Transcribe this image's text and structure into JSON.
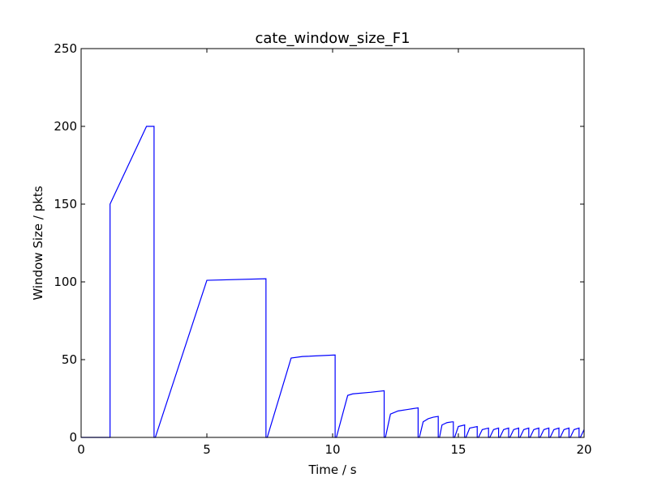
{
  "chart_data": {
    "type": "line",
    "title": "cate_window_size_F1",
    "xlabel": "Time / s",
    "ylabel": "Window Size / pkts",
    "xlim": [
      0,
      20
    ],
    "ylim": [
      0,
      250
    ],
    "x_ticks": [
      0,
      5,
      10,
      15,
      20
    ],
    "y_ticks": [
      0,
      50,
      100,
      150,
      200,
      250
    ],
    "grid": false,
    "legend": "none",
    "series": [
      {
        "color": "#0000ff",
        "x": [
          0,
          1.15,
          1.15,
          2.6,
          2.9,
          2.9,
          2.95,
          5.0,
          7.35,
          7.35,
          7.4,
          8.35,
          8.8,
          10.1,
          10.1,
          10.15,
          10.6,
          10.8,
          11.5,
          12.05,
          12.05,
          12.1,
          12.3,
          12.6,
          13.0,
          13.4,
          13.4,
          13.45,
          13.6,
          13.8,
          14.0,
          14.2,
          14.2,
          14.25,
          14.35,
          14.55,
          14.75,
          14.8,
          14.8,
          14.85,
          15.0,
          15.25,
          15.25,
          15.3,
          15.45,
          15.75,
          15.75,
          15.8,
          15.95,
          16.2,
          16.2,
          16.25,
          16.4,
          16.6,
          16.6,
          16.65,
          16.8,
          17.0,
          17.0,
          17.05,
          17.2,
          17.4,
          17.4,
          17.45,
          17.6,
          17.8,
          17.8,
          17.85,
          18.0,
          18.2,
          18.2,
          18.25,
          18.4,
          18.6,
          18.6,
          18.65,
          18.8,
          19.0,
          19.0,
          19.05,
          19.2,
          19.4,
          19.4,
          19.45,
          19.6,
          19.8,
          19.8,
          19.85,
          20.0
        ],
        "y": [
          0,
          0,
          150,
          200,
          200,
          0,
          0,
          101,
          102,
          0,
          0,
          51,
          52,
          53,
          0,
          0,
          27,
          28,
          29,
          30,
          0,
          0,
          15,
          17,
          18,
          19,
          0,
          0,
          10,
          12,
          13,
          13.5,
          0,
          0,
          8,
          9.5,
          10,
          10,
          0,
          0,
          7,
          8,
          0,
          0,
          6,
          7,
          0,
          0,
          5,
          6,
          0,
          0,
          5,
          6,
          0,
          0,
          5,
          6,
          0,
          0,
          5,
          6,
          0,
          0,
          5,
          6,
          0,
          0,
          5,
          6,
          0,
          0,
          5,
          6,
          0,
          0,
          5,
          6,
          0,
          0,
          5,
          6,
          0,
          0,
          5,
          6,
          0,
          0,
          5
        ]
      }
    ]
  }
}
